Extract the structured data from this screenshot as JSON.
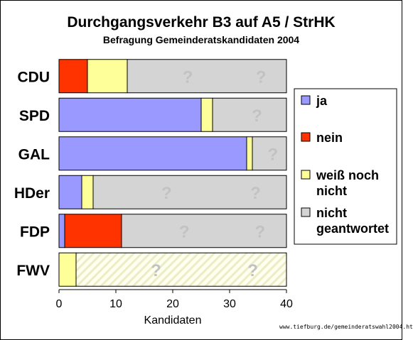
{
  "chart_data": {
    "type": "bar",
    "stacked": true,
    "orientation": "horizontal",
    "title": "Durchgangsverkehr B3 auf A5 / StrHK",
    "subtitle": "Befragung Gemeinderatskandidaten 2004",
    "xlabel": "Kandidaten",
    "xlim": [
      0,
      40
    ],
    "xticks": [
      0,
      10,
      20,
      30,
      40
    ],
    "categories": [
      "CDU",
      "SPD",
      "GAL",
      "HDer",
      "FDP",
      "FWV"
    ],
    "series": [
      {
        "name": "ja",
        "color": "#9999ff",
        "values": [
          0,
          25,
          33,
          4,
          1,
          0
        ]
      },
      {
        "name": "nein",
        "color": "#ff3300",
        "values": [
          5,
          0,
          0,
          0,
          10,
          0
        ]
      },
      {
        "name": "weiß noch nicht",
        "color": "#ffff99",
        "values": [
          7,
          2,
          1,
          2,
          0,
          3
        ]
      },
      {
        "name": "nicht geantwortet",
        "color": "#d4d4d4",
        "values": [
          28,
          13,
          6,
          34,
          29,
          37
        ]
      }
    ],
    "question_mark": "?",
    "legend_position": "right",
    "legend_lines": [
      [
        "ja"
      ],
      [
        "nein"
      ],
      [
        "weiß noch",
        "nicht"
      ],
      [
        "nicht",
        "geantwortet"
      ]
    ],
    "grid": false
  },
  "source_note": "www.tiefburg.de/gemeinderatswahl2004.ht"
}
